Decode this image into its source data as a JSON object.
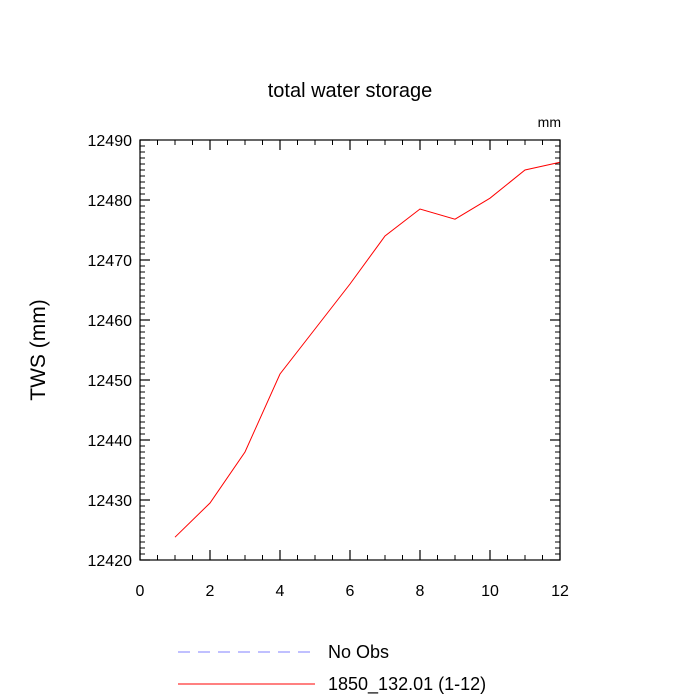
{
  "chart_data": {
    "type": "line",
    "title": "total water storage",
    "units": "mm",
    "xlabel": "",
    "ylabel": "TWS  (mm)",
    "xlim": [
      0,
      12
    ],
    "ylim": [
      12420,
      12490
    ],
    "x_ticks": [
      0,
      2,
      4,
      6,
      8,
      10,
      12
    ],
    "y_ticks": [
      12420,
      12430,
      12440,
      12450,
      12460,
      12470,
      12480,
      12490
    ],
    "x_minor_step": 0.5,
    "y_minor_step": 1,
    "series": [
      {
        "name": "No Obs",
        "color": "#8080ff",
        "dash": "dashed",
        "x": [],
        "values": []
      },
      {
        "name": "1850_132.01 (1-12)",
        "color": "#ff0000",
        "dash": "solid",
        "x": [
          1,
          2,
          3,
          4,
          5,
          6,
          7,
          8,
          9,
          10,
          11,
          12
        ],
        "values": [
          12423.8,
          12429.5,
          12438.0,
          12451.0,
          12458.5,
          12466.0,
          12474.0,
          12478.5,
          12476.8,
          12480.3,
          12485.0,
          12486.3
        ]
      }
    ]
  }
}
